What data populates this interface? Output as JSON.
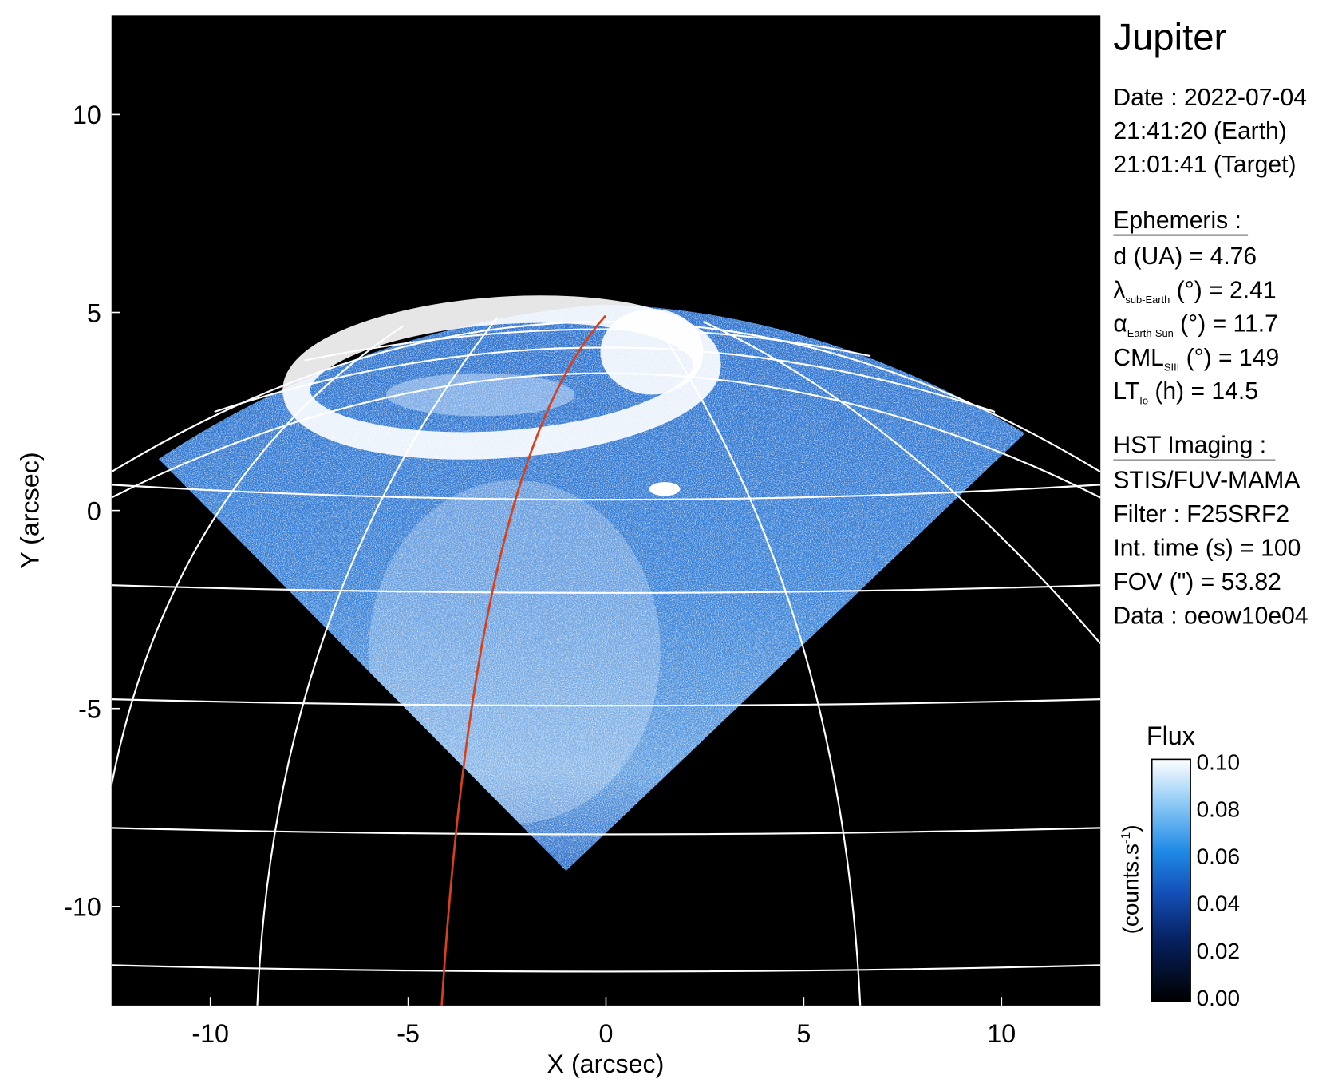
{
  "chart_data": {
    "type": "image",
    "xlabel": "X (arcsec)",
    "ylabel": "Y (arcsec)",
    "xlim": [
      -12.5,
      12.5
    ],
    "ylim": [
      -12.5,
      12.5
    ],
    "xticks": [
      -10,
      -5,
      0,
      5,
      10
    ],
    "yticks": [
      -10,
      -5,
      0,
      5,
      10
    ],
    "colorbar": {
      "title": "Flux",
      "label": {
        "text": "(counts.s",
        "sup": "-1",
        "close": ")"
      },
      "lim": [
        0,
        0.1
      ],
      "ticks": [
        {
          "value": 0.1,
          "label": "0.10"
        },
        {
          "value": 0.08,
          "label": "0.08"
        },
        {
          "value": 0.06,
          "label": "0.06"
        },
        {
          "value": 0.04,
          "label": "0.04"
        },
        {
          "value": 0.02,
          "label": "0.02"
        },
        {
          "value": 0,
          "label": "0.00"
        }
      ]
    },
    "panel": {
      "title": "Jupiter",
      "date_lines": [
        "Date : 2022-07-04",
        "21:41:20 (Earth)",
        "21:01:41 (Target)"
      ],
      "ephemeris": {
        "heading": "Ephemeris :",
        "lines": [
          {
            "symbol": "d (UA)    = 4.76"
          },
          {
            "symbol": "λ",
            "sub": "sub-Earth",
            "rest": " (°) = 2.41"
          },
          {
            "symbol": "α",
            "sub": "Earth-Sun",
            "rest": " (°) = 11.7"
          },
          {
            "symbol": "CML",
            "sub": "SIII",
            "rest": " (°) = 149"
          },
          {
            "symbol": "LT",
            "sub": "Io",
            "rest": " (h) = 14.5"
          }
        ]
      },
      "imaging": {
        "heading": "HST Imaging :",
        "lines": [
          "STIS/FUV-MAMA",
          "Filter : F25SRF2",
          "Int. time (s) = 100",
          "FOV (\") = 53.82",
          "Data : oeow10e04"
        ]
      }
    }
  }
}
